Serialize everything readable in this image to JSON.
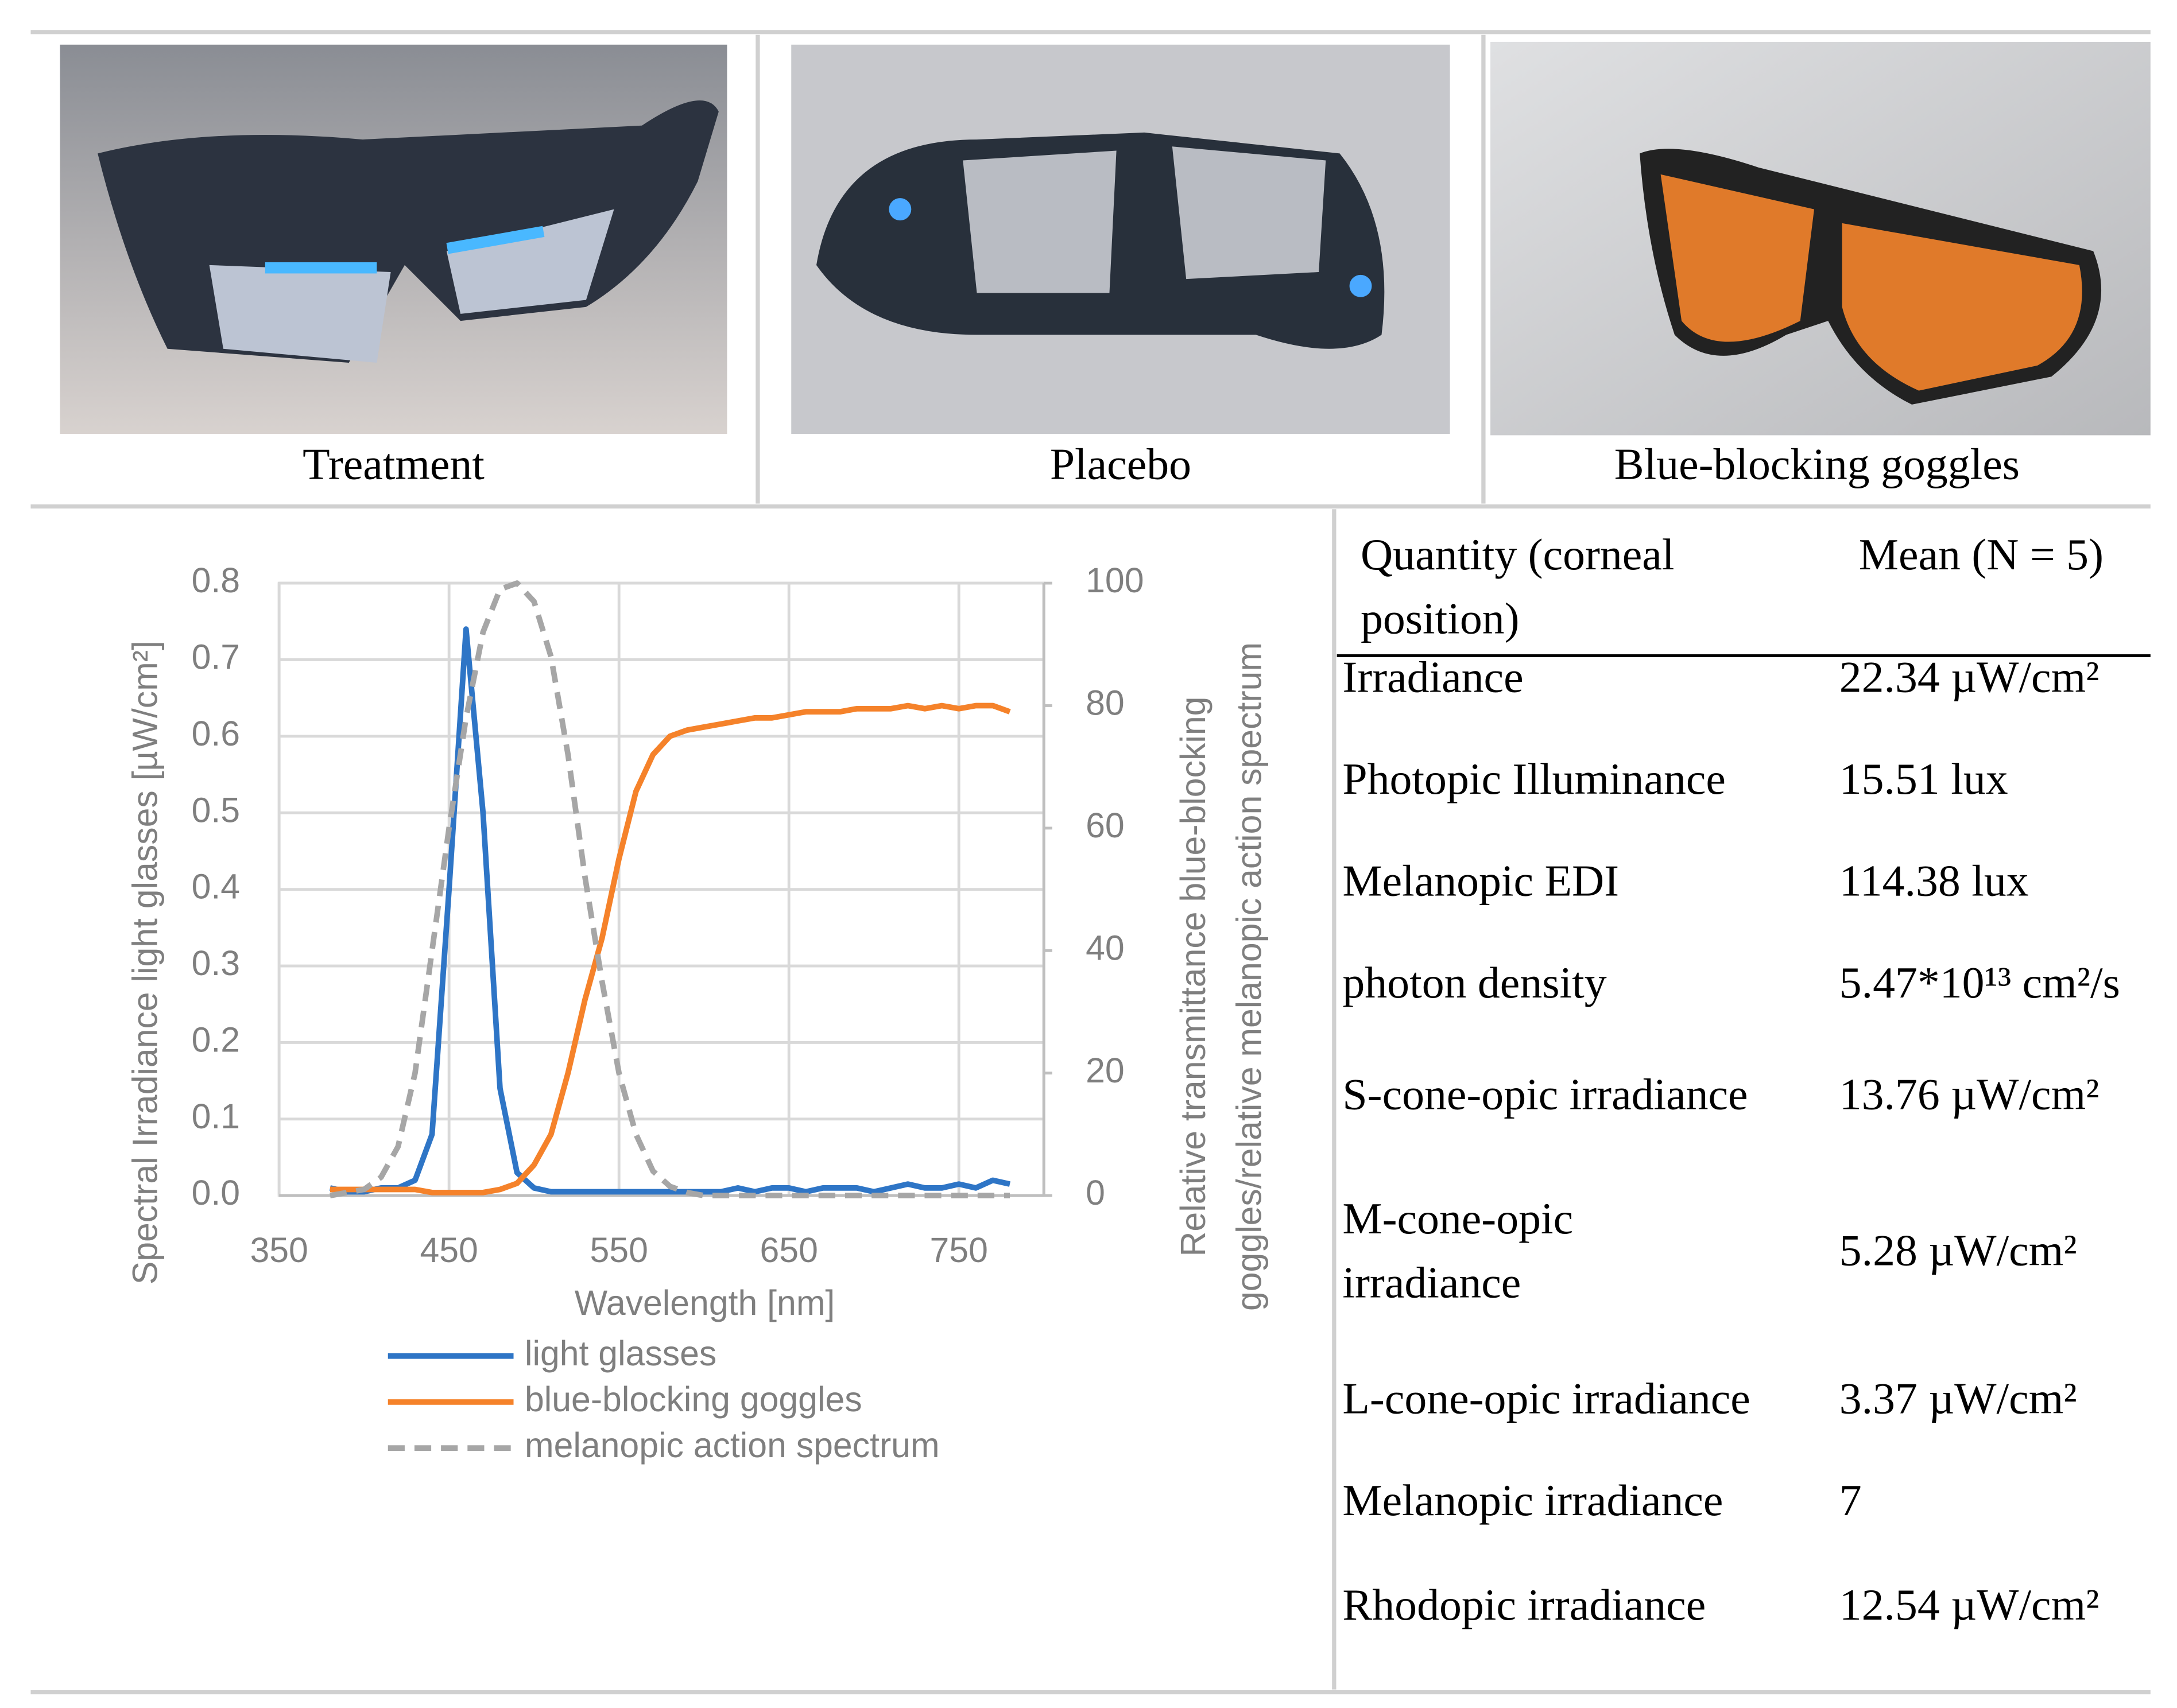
{
  "captions": [
    "Treatment",
    "Placebo",
    "Blue-blocking goggles"
  ],
  "chart_data": {
    "type": "line",
    "x": [
      380,
      390,
      400,
      410,
      420,
      430,
      440,
      450,
      460,
      470,
      480,
      490,
      500,
      510,
      520,
      530,
      540,
      550,
      560,
      570,
      580,
      590,
      600,
      610,
      620,
      630,
      640,
      650,
      660,
      670,
      680,
      690,
      700,
      710,
      720,
      730,
      740,
      750,
      760,
      770,
      780
    ],
    "series": [
      {
        "name": "light glasses",
        "color": "#2e75c6",
        "dash": false,
        "axis": "y",
        "values": [
          0.01,
          0.005,
          0.005,
          0.01,
          0.01,
          0.02,
          0.08,
          0.4,
          0.74,
          0.5,
          0.14,
          0.03,
          0.01,
          0.005,
          0.005,
          0.005,
          0.005,
          0.005,
          0.005,
          0.005,
          0.005,
          0.005,
          0.005,
          0.005,
          0.01,
          0.005,
          0.01,
          0.01,
          0.005,
          0.01,
          0.01,
          0.01,
          0.005,
          0.01,
          0.015,
          0.01,
          0.01,
          0.015,
          0.01,
          0.02,
          0.015
        ]
      },
      {
        "name": "blue-blocking goggles",
        "color": "#f5822a",
        "dash": false,
        "axis": "y2",
        "values": [
          1,
          1,
          1,
          1,
          1,
          1,
          0.5,
          0.5,
          0.5,
          0.5,
          1,
          2,
          5,
          10,
          20,
          32,
          42,
          55,
          66,
          72,
          75,
          76,
          76.5,
          77,
          77.5,
          78,
          78,
          78.5,
          79,
          79,
          79,
          79.5,
          79.5,
          79.5,
          80,
          79.5,
          80,
          79.5,
          80,
          80,
          79
        ]
      },
      {
        "name": "melanopic action spectrum",
        "color": "#a6a6a6",
        "dash": true,
        "axis": "y2",
        "values": [
          0,
          0.5,
          1,
          3,
          8,
          20,
          40,
          60,
          78,
          92,
          99,
          100,
          97,
          88,
          72,
          52,
          35,
          20,
          10,
          4,
          1.5,
          0.5,
          0,
          0,
          0,
          0,
          0,
          0,
          0,
          0,
          0,
          0,
          0,
          0,
          0,
          0,
          0,
          0,
          0,
          0,
          0
        ]
      }
    ],
    "xlabel": "Wavelength [nm]",
    "ylabel": "Spectral Irradiance light glasses [µW/cm²]",
    "y2label": [
      "Relative transmittance blue-blocking",
      "goggles/relative melanopic action spectrum"
    ],
    "xlim": [
      350,
      800
    ],
    "xticks": [
      350,
      450,
      550,
      650,
      750
    ],
    "ylim": [
      0,
      0.8
    ],
    "yticks": [
      {
        "value": 0,
        "label": "0.0"
      },
      0.1,
      0.2,
      0.3,
      0.4,
      0.5,
      0.6,
      0.7,
      0.8
    ],
    "y2lim": [
      0,
      100
    ],
    "y2ticks": [
      0,
      20,
      40,
      60,
      80,
      100
    ],
    "grid": true
  },
  "table": {
    "header": [
      "Quantity (corneal position)",
      "Mean (N = 5)"
    ],
    "rows": [
      [
        "Irradiance",
        "22.34 µW/cm²"
      ],
      [
        "Photopic Illuminance",
        "15.51 lux"
      ],
      [
        "Melanopic EDI",
        "114.38 lux"
      ],
      [
        "photon density",
        "5.47*10¹³ cm²/s"
      ],
      [
        "S-cone-opic irradiance",
        "13.76 µW/cm²"
      ],
      [
        "M-cone-opic irradiance",
        "5.28 µW/cm²"
      ],
      [
        "L-cone-opic irradiance",
        "3.37 µW/cm²"
      ],
      [
        "Melanopic irradiance",
        "7"
      ],
      [
        "Rhodopic irradiance",
        "12.54 µW/cm²"
      ]
    ]
  }
}
